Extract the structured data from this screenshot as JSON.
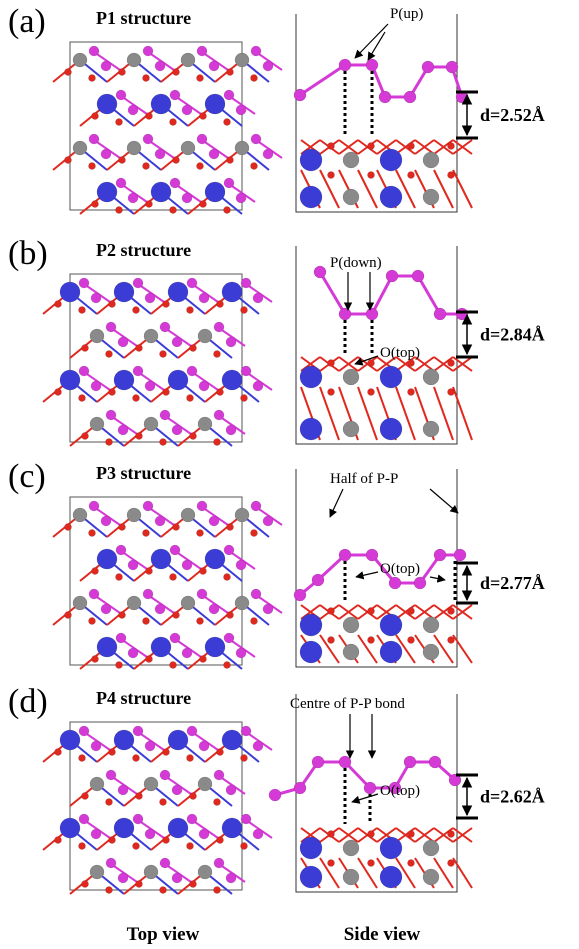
{
  "panels": [
    {
      "label": "(a)",
      "title": "P1 structure",
      "annotations": [
        "P(up)"
      ],
      "distance": "d=2.52Å"
    },
    {
      "label": "(b)",
      "title": "P2 structure",
      "annotations": [
        "P(down)",
        "O(top)"
      ],
      "distance": "d=2.84Å"
    },
    {
      "label": "(c)",
      "title": "P3 structure",
      "annotations": [
        "Half of P-P",
        "O(top)"
      ],
      "distance": "d=2.77Å"
    },
    {
      "label": "(d)",
      "title": "P4 structure",
      "annotations": [
        "Centre of P-P bond",
        "O(top)"
      ],
      "distance": "d=2.62Å"
    }
  ],
  "footer": {
    "left": "Top view",
    "right": "Side view"
  }
}
